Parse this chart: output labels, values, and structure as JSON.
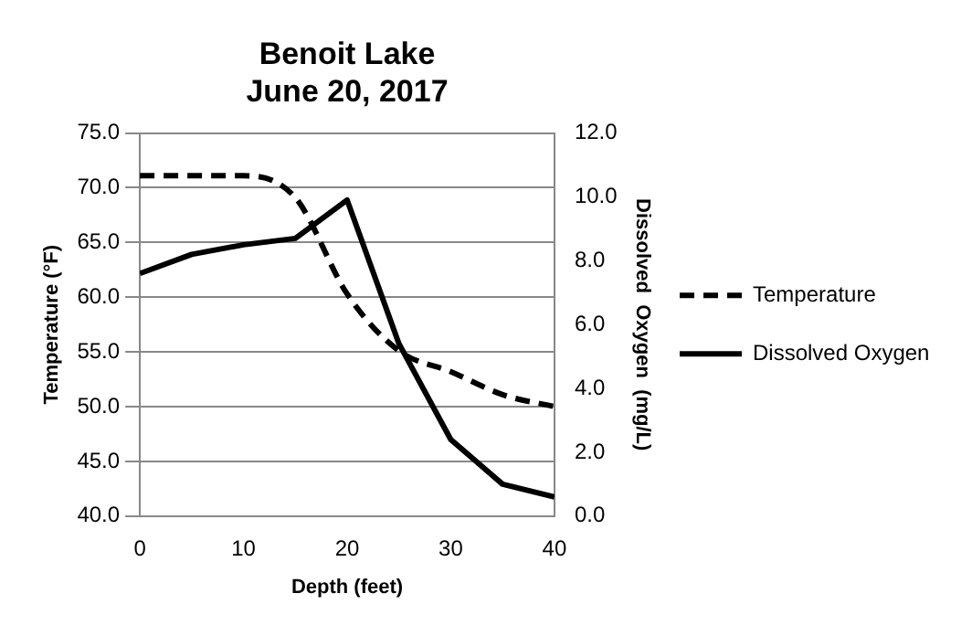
{
  "chart_data": {
    "type": "line",
    "title": "Benoit Lake\nJune 20, 2017",
    "xlabel": "Depth (feet)",
    "ylabel": "Temperature (°F)",
    "y2label": "Dissolved  Oxygen  (mg/L)",
    "x": [
      0,
      5,
      10,
      15,
      20,
      25,
      30,
      35,
      40
    ],
    "series": [
      {
        "name": "Temperature",
        "color": "#000000",
        "line_style": "dashed",
        "values": [
          71.1,
          71.1,
          71.1,
          69.1,
          60.3,
          55.1,
          53.2,
          51.1,
          50.0
        ]
      },
      {
        "name": "Dissolved Oxygen",
        "color": "#000000",
        "line_style": "solid",
        "axis": "y2",
        "values": [
          7.6,
          8.2,
          8.5,
          8.7,
          9.9,
          5.4,
          2.4,
          1.0,
          0.6
        ]
      }
    ],
    "xlim": [
      0,
      40
    ],
    "xticks": [
      0,
      10,
      20,
      30,
      40
    ],
    "ylim": [
      40,
      75
    ],
    "yticks": [
      {
        "value": 40,
        "label": "40.0"
      },
      {
        "value": 45,
        "label": "45.0"
      },
      {
        "value": 50,
        "label": "50.0"
      },
      {
        "value": 55,
        "label": "55.0"
      },
      {
        "value": 60,
        "label": "60.0"
      },
      {
        "value": 65,
        "label": "65.0"
      },
      {
        "value": 70,
        "label": "70.0"
      },
      {
        "value": 75,
        "label": "75.0"
      }
    ],
    "y2lim": [
      0,
      12
    ],
    "y2ticks": [
      {
        "value": 0,
        "label": "0.0"
      },
      {
        "value": 2,
        "label": "2.0"
      },
      {
        "value": 4,
        "label": "4.0"
      },
      {
        "value": 6,
        "label": "6.0"
      },
      {
        "value": 8,
        "label": "8.0"
      },
      {
        "value": 10,
        "label": "10.0"
      },
      {
        "value": 12,
        "label": "12.0"
      }
    ],
    "grid": "y",
    "legend": "right",
    "marker": "none"
  }
}
